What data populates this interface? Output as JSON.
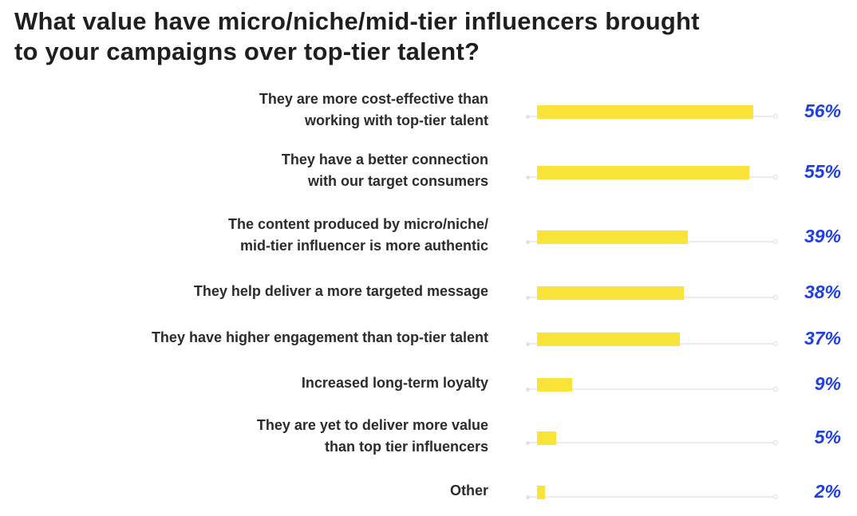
{
  "chart_data": {
    "type": "bar",
    "orientation": "horizontal",
    "title": "What value have micro/niche/mid-tier influencers brought to your campaigns over top-tier talent?",
    "title_lines": [
      "What value have micro/niche/mid-tier influencers brought",
      "to your campaigns over top-tier talent?"
    ],
    "categories": [
      [
        "They are more cost-effective than",
        "working with top-tier talent"
      ],
      [
        "They have a better connection",
        "with our  target consumers"
      ],
      [
        "The content produced by micro/niche/",
        "mid-tier influencer is more authentic"
      ],
      [
        "They help deliver a more targeted message"
      ],
      [
        "They have  higher engagement than top-tier talent"
      ],
      [
        "Increased long-term loyalty"
      ],
      [
        "They are yet to deliver more value",
        "than top tier influencers"
      ],
      [
        "Other"
      ]
    ],
    "values": [
      56,
      55,
      39,
      38,
      37,
      9,
      5,
      2
    ],
    "value_labels": [
      "56%",
      "55%",
      "39%",
      "38%",
      "37%",
      "9%",
      "5%",
      "2%"
    ],
    "unit": "%",
    "xlim": [
      0,
      60
    ],
    "grid": false,
    "legend": "none",
    "bar_color": "#fbe43a",
    "value_color": "#1f3fe0"
  }
}
